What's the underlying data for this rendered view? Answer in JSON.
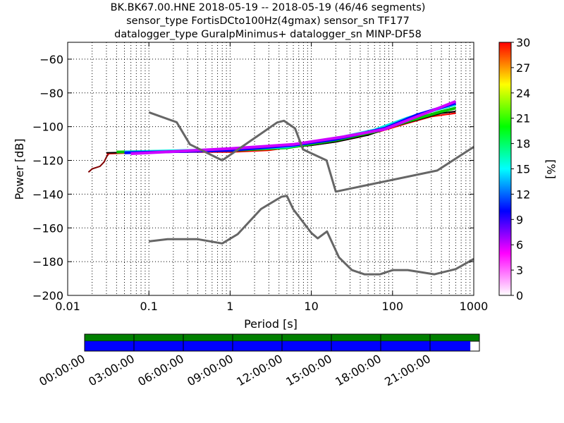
{
  "chart_data": {
    "type": "heatmap",
    "title_lines": [
      "BK.BK67.00.HNE   2018-05-19 -- 2018-05-19  (46/46 segments)",
      "sensor_type FortisDCto100Hz(4gmax) sensor_sn TF177",
      "datalogger_type GuralpMinimus+ datalogger_sn MINP-DF58"
    ],
    "xlabel": "Period [s]",
    "ylabel": "Power [dB]",
    "x_scale": "log",
    "xlim": [
      0.01,
      1000
    ],
    "ylim": [
      -200,
      -50
    ],
    "x_ticks": [
      "0.01",
      "0.1",
      "1",
      "10",
      "100",
      "1000"
    ],
    "y_ticks": [
      "−60",
      "−80",
      "−100",
      "−120",
      "−140",
      "−160",
      "−180",
      "−200"
    ],
    "y_tick_values": [
      -60,
      -80,
      -100,
      -120,
      -140,
      -160,
      -180,
      -200
    ],
    "grid": true,
    "colorbar": {
      "label": "[%]",
      "ticks": [
        "0",
        "3",
        "6",
        "9",
        "12",
        "15",
        "18",
        "21",
        "24",
        "27",
        "30"
      ],
      "range": [
        0,
        30
      ],
      "colors": [
        "#ffffff",
        "#ff00ff",
        "#0000ff",
        "#00ffff",
        "#00ff00",
        "#ffff00",
        "#ff0000"
      ]
    },
    "noise_models": {
      "high": [
        [
          0.1,
          -91.5
        ],
        [
          0.22,
          -97.4
        ],
        [
          0.32,
          -110.5
        ],
        [
          0.8,
          -120
        ],
        [
          3.8,
          -97.5
        ],
        [
          4.6,
          -96.5
        ],
        [
          6.3,
          -101
        ],
        [
          7.9,
          -113.5
        ],
        [
          15.4,
          -120
        ],
        [
          20,
          -138.5
        ],
        [
          354.8,
          -126
        ],
        [
          1000,
          -112
        ]
      ],
      "low": [
        [
          0.1,
          -168
        ],
        [
          0.17,
          -166.7
        ],
        [
          0.4,
          -166.7
        ],
        [
          0.8,
          -169.2
        ],
        [
          1.24,
          -163.7
        ],
        [
          2.4,
          -148.8
        ],
        [
          4.3,
          -141.5
        ],
        [
          5.0,
          -141
        ],
        [
          6.0,
          -149
        ],
        [
          10,
          -163
        ],
        [
          12,
          -166.2
        ],
        [
          15.6,
          -162.1
        ],
        [
          21.9,
          -177.5
        ],
        [
          31.6,
          -185
        ],
        [
          45,
          -187.5
        ],
        [
          70,
          -187.5
        ],
        [
          101,
          -185
        ],
        [
          154,
          -185
        ],
        [
          328,
          -187.5
        ],
        [
          600,
          -184.4
        ],
        [
          1000,
          -178.4
        ]
      ]
    },
    "psd_series": [
      {
        "color": "#ff0000",
        "points": [
          [
            0.03,
            -116
          ],
          [
            0.06,
            -115.5
          ],
          [
            0.2,
            -115
          ],
          [
            1,
            -115
          ],
          [
            3,
            -114
          ],
          [
            6,
            -112
          ],
          [
            10,
            -111
          ],
          [
            20,
            -109
          ],
          [
            40,
            -106
          ],
          [
            80,
            -102
          ],
          [
            150,
            -98
          ],
          [
            300,
            -94
          ],
          [
            600,
            -92
          ]
        ]
      },
      {
        "color": "#000000",
        "points": [
          [
            0.03,
            -115.5
          ],
          [
            0.1,
            -115
          ],
          [
            1,
            -114.5
          ],
          [
            4,
            -113
          ],
          [
            10,
            -111
          ],
          [
            20,
            -109
          ],
          [
            50,
            -105
          ],
          [
            100,
            -100
          ],
          [
            200,
            -96
          ],
          [
            400,
            -92
          ],
          [
            600,
            -91
          ]
        ]
      },
      {
        "color": "#00c800",
        "points": [
          [
            0.04,
            -115
          ],
          [
            1,
            -114
          ],
          [
            5,
            -112.5
          ],
          [
            20,
            -108
          ],
          [
            60,
            -103
          ],
          [
            150,
            -97
          ],
          [
            400,
            -91
          ],
          [
            600,
            -89
          ]
        ]
      },
      {
        "color": "#00e0e0",
        "points": [
          [
            0.05,
            -115
          ],
          [
            1,
            -113.5
          ],
          [
            5,
            -112
          ],
          [
            20,
            -107
          ],
          [
            60,
            -102
          ],
          [
            150,
            -95
          ],
          [
            400,
            -89
          ],
          [
            600,
            -87
          ]
        ]
      },
      {
        "color": "#0000ff",
        "points": [
          [
            0.05,
            -115.5
          ],
          [
            1,
            -114
          ],
          [
            6,
            -111
          ],
          [
            20,
            -107.5
          ],
          [
            80,
            -101
          ],
          [
            200,
            -93
          ],
          [
            600,
            -86
          ]
        ]
      },
      {
        "color": "#cc00ff",
        "points": [
          [
            0.06,
            -116
          ],
          [
            1,
            -113
          ],
          [
            6,
            -110.5
          ],
          [
            25,
            -106
          ],
          [
            80,
            -101.5
          ],
          [
            200,
            -94
          ],
          [
            600,
            -85
          ]
        ]
      }
    ],
    "psd_start": [
      [
        0.018,
        -127
      ],
      [
        0.02,
        -125
      ],
      [
        0.025,
        -123.5
      ],
      [
        0.028,
        -121
      ],
      [
        0.03,
        -118
      ],
      [
        0.032,
        -116
      ]
    ]
  },
  "time_axis": {
    "labels": [
      "00:00:00",
      "03:00:00",
      "06:00:00",
      "09:00:00",
      "12:00:00",
      "15:00:00",
      "18:00:00",
      "21:00:00"
    ],
    "hours": [
      0,
      3,
      6,
      9,
      12,
      15,
      18,
      21
    ],
    "coverage_fraction": 0.977,
    "top_bar_color": "#008000",
    "bottom_bar_color": "#0000ff"
  }
}
